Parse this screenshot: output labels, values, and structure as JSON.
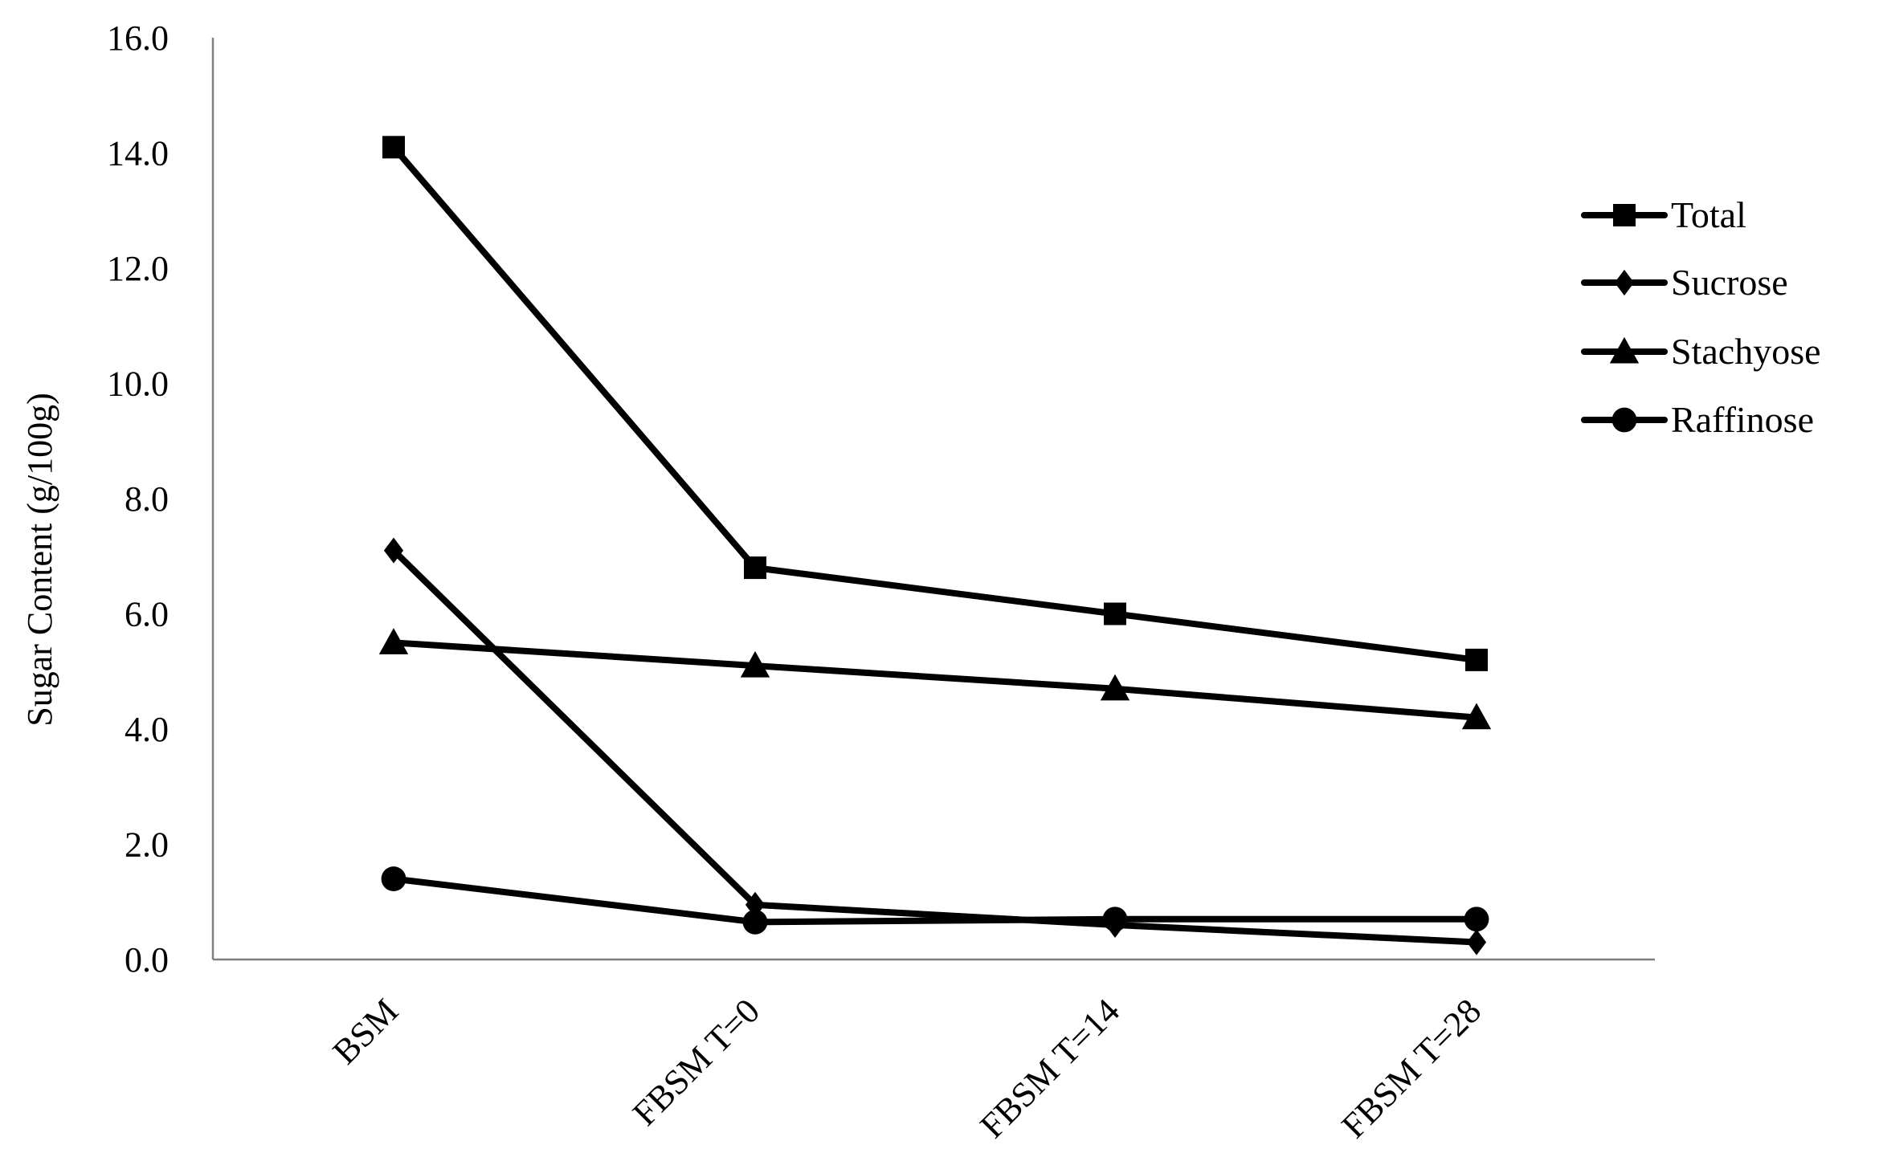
{
  "chart_data": {
    "type": "line",
    "title": "",
    "xlabel": "",
    "ylabel": "Sugar Content (g/100g)",
    "ylim": [
      0,
      16
    ],
    "ytick_step": 2,
    "ytick_labels": [
      "0.0",
      "2.0",
      "4.0",
      "6.0",
      "8.0",
      "10.0",
      "12.0",
      "14.0",
      "16.0"
    ],
    "categories": [
      "BSM",
      "FBSM T=0",
      "FBSM T=14",
      "FBSM T=28"
    ],
    "grid": false,
    "legend_position": "right",
    "series": [
      {
        "name": "Total",
        "marker": "square",
        "color": "#000000",
        "values": [
          14.1,
          6.8,
          6.0,
          5.2
        ]
      },
      {
        "name": "Sucrose",
        "marker": "diamond",
        "color": "#000000",
        "values": [
          7.1,
          0.95,
          0.6,
          0.3
        ]
      },
      {
        "name": "Stachyose",
        "marker": "triangle",
        "color": "#000000",
        "values": [
          5.5,
          5.1,
          4.7,
          4.2
        ]
      },
      {
        "name": "Raffinose",
        "marker": "circle",
        "color": "#000000",
        "values": [
          1.4,
          0.65,
          0.7,
          0.7
        ]
      }
    ]
  }
}
